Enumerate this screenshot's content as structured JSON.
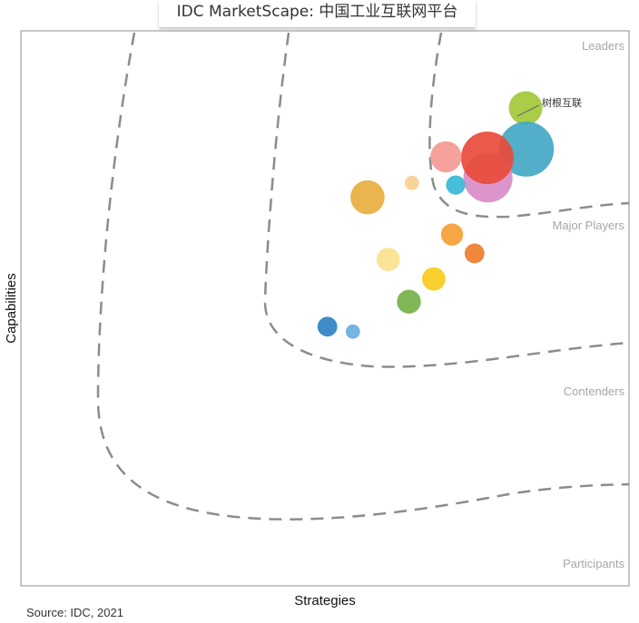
{
  "title": "IDC MarketScape:  中国工业互联网平台",
  "source": "Source: IDC, 2021",
  "chart_data": {
    "type": "scatter",
    "title": "IDC MarketScape:  中国工业互联网平台",
    "xlabel": "Strategies",
    "ylabel": "Capabilities",
    "xlim": [
      0,
      1
    ],
    "ylim": [
      0,
      1
    ],
    "grid": false,
    "regions": [
      "Leaders",
      "Major Players",
      "Contenders",
      "Participants"
    ],
    "callout": "树根互联",
    "points": [
      {
        "x": 0.83,
        "y": 0.861,
        "size": 0.56,
        "color": "#a2c83a",
        "label": "树根互联"
      },
      {
        "x": 0.831,
        "y": 0.787,
        "size": 0.92,
        "color": "#43a7c4"
      },
      {
        "x": 0.768,
        "y": 0.735,
        "size": 0.82,
        "color": "#d98cc6"
      },
      {
        "x": 0.767,
        "y": 0.771,
        "size": 0.88,
        "color": "#e84b3b"
      },
      {
        "x": 0.699,
        "y": 0.773,
        "size": 0.52,
        "color": "#f39a93"
      },
      {
        "x": 0.715,
        "y": 0.722,
        "size": 0.32,
        "color": "#36b9d6"
      },
      {
        "x": 0.643,
        "y": 0.726,
        "size": 0.24,
        "color": "#f9cf8f"
      },
      {
        "x": 0.57,
        "y": 0.7,
        "size": 0.57,
        "color": "#e8ae3f"
      },
      {
        "x": 0.709,
        "y": 0.633,
        "size": 0.37,
        "color": "#f5a033"
      },
      {
        "x": 0.746,
        "y": 0.599,
        "size": 0.33,
        "color": "#ee7d2d"
      },
      {
        "x": 0.604,
        "y": 0.588,
        "size": 0.39,
        "color": "#fbe28e"
      },
      {
        "x": 0.679,
        "y": 0.553,
        "size": 0.39,
        "color": "#f7cb1d"
      },
      {
        "x": 0.638,
        "y": 0.512,
        "size": 0.4,
        "color": "#75b24a"
      },
      {
        "x": 0.504,
        "y": 0.467,
        "size": 0.33,
        "color": "#2e82c2"
      },
      {
        "x": 0.546,
        "y": 0.458,
        "size": 0.24,
        "color": "#6aaee0"
      }
    ]
  }
}
